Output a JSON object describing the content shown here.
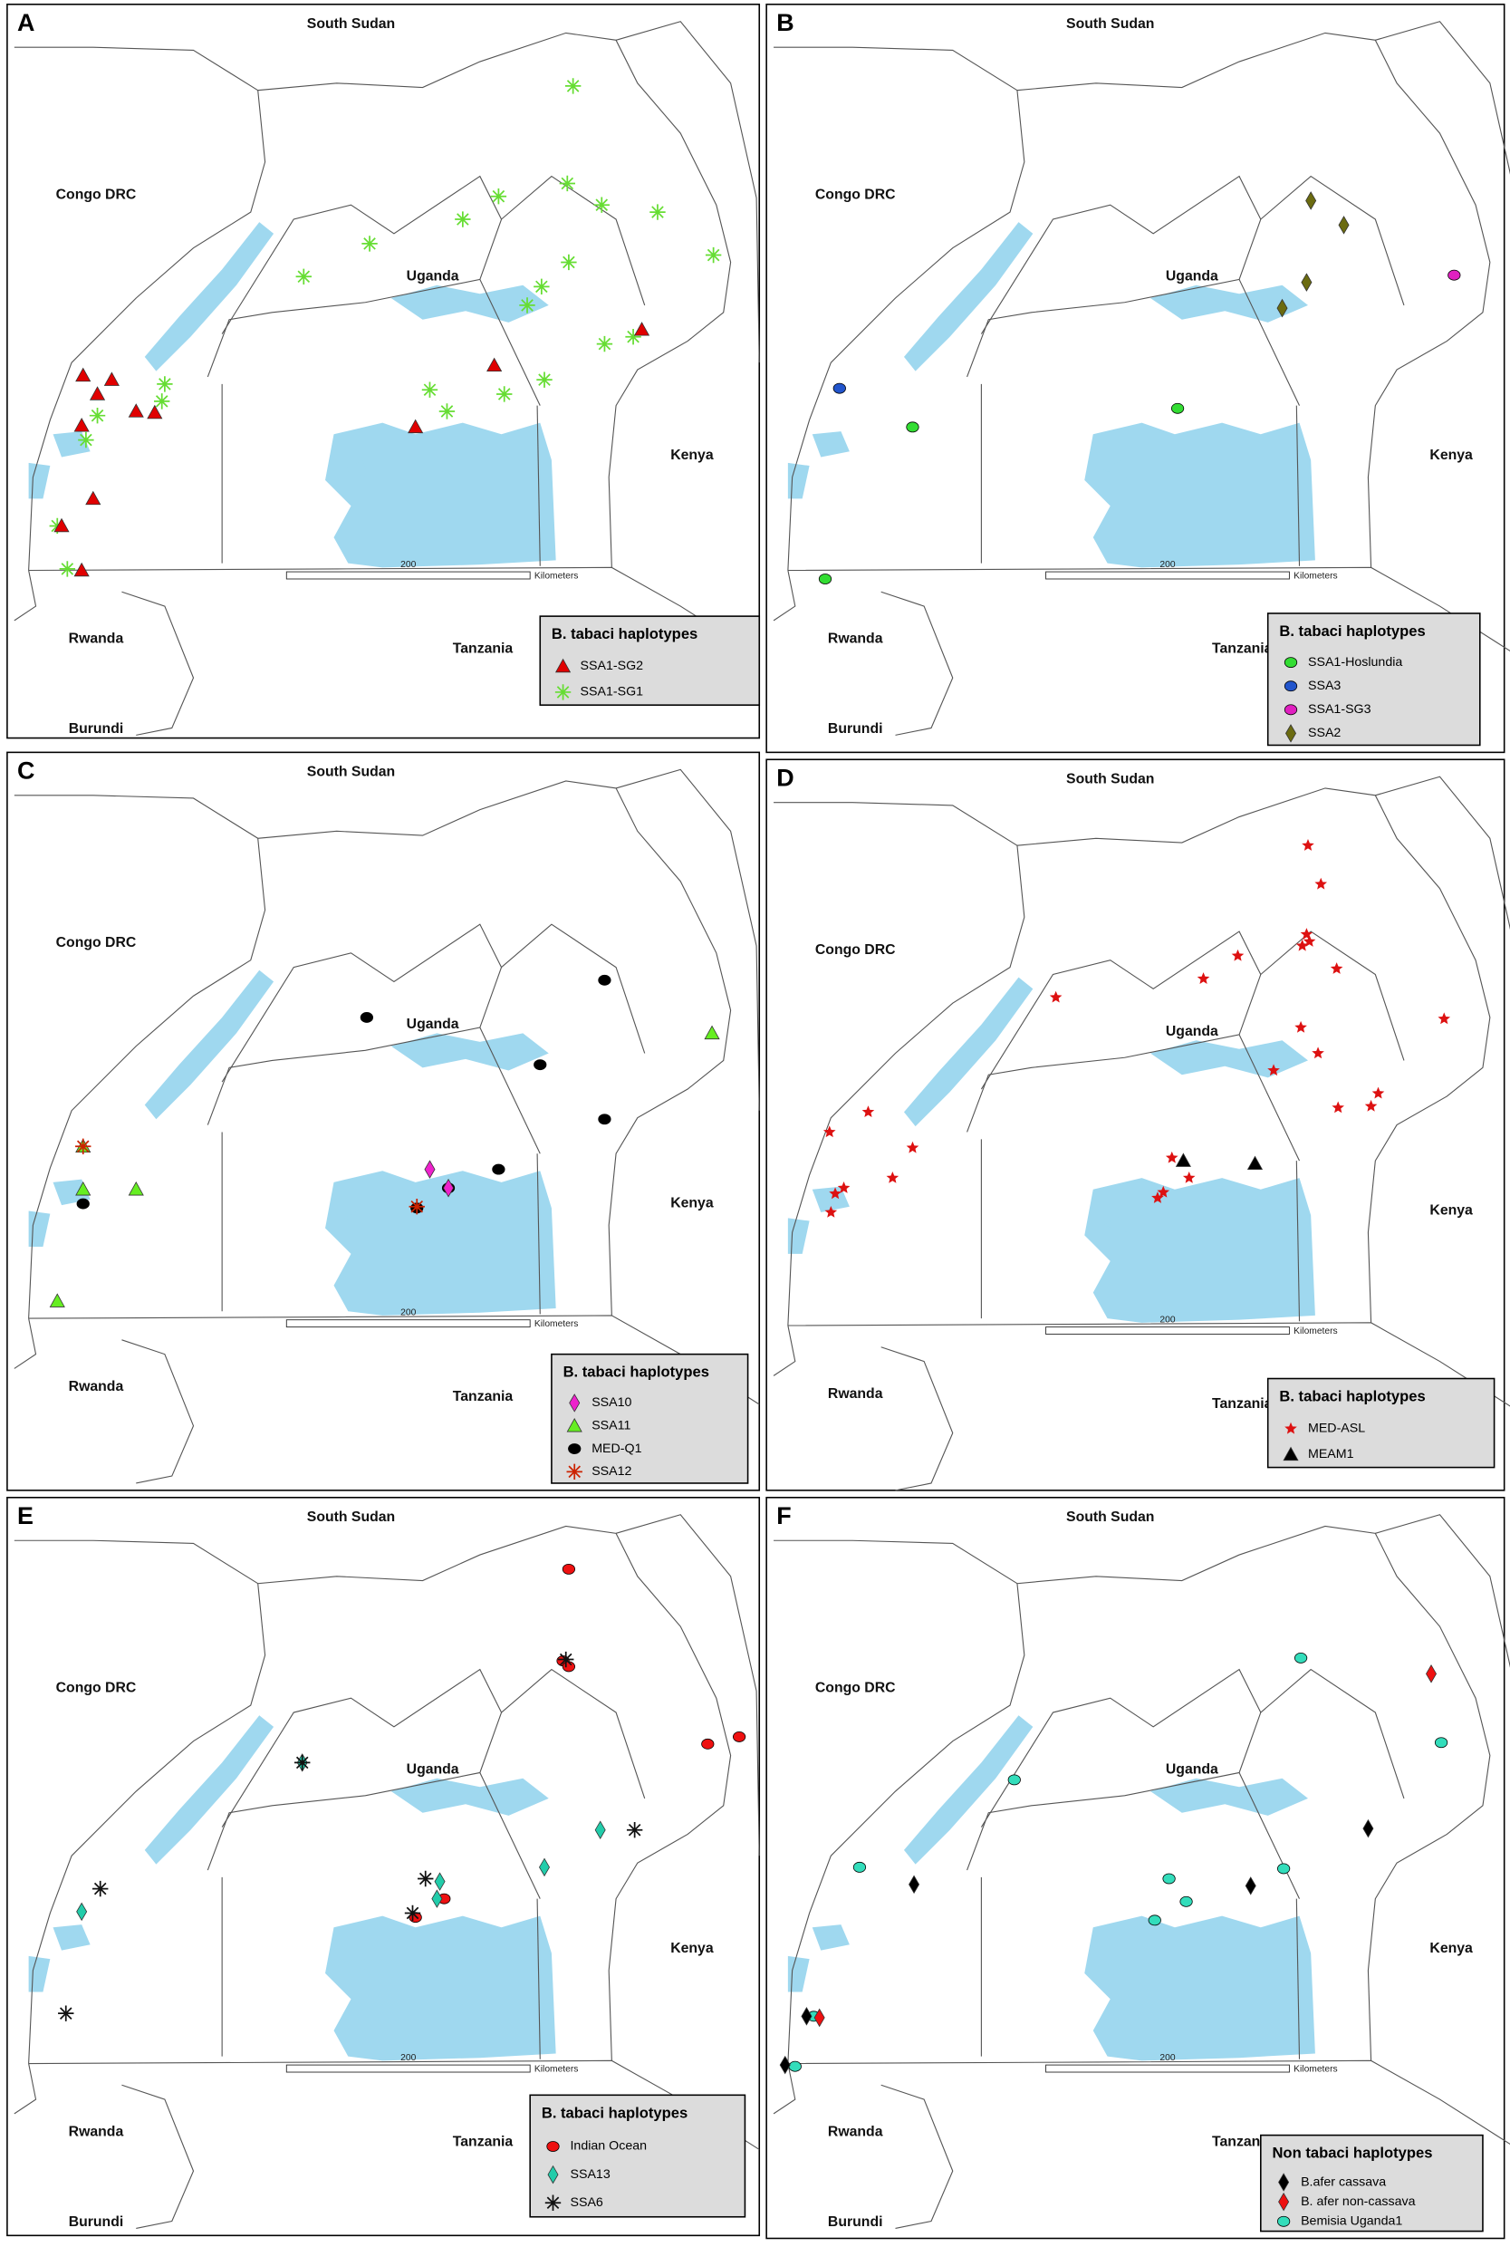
{
  "panels": [
    {
      "label": "A",
      "place_names": [
        "South Sudan",
        "Congo DRC",
        "Uganda",
        "Kenya",
        "Rwanda",
        "Tanzania",
        "Burundi"
      ],
      "scale_label": "200",
      "scale_unit": "Kilometers",
      "legend": {
        "title": "B. tabaci haplotypes",
        "entries": [
          {
            "name": "SSA1-SG2",
            "color": "#e00000",
            "marker": "triangle"
          },
          {
            "name": "SSA1-SG1",
            "color": "#66dd33",
            "marker": "asterisk"
          }
        ]
      }
    },
    {
      "label": "B",
      "place_names": [
        "South Sudan",
        "Congo DRC",
        "Uganda",
        "Kenya",
        "Rwanda",
        "Tanzania",
        "Burundi"
      ],
      "scale_label": "200",
      "scale_unit": "Kilometers",
      "legend": {
        "title": "B. tabaci haplotypes",
        "entries": [
          {
            "name": "SSA1-Hoslundia",
            "color": "#33dd33",
            "marker": "circle"
          },
          {
            "name": "SSA3",
            "color": "#2255cc",
            "marker": "circle"
          },
          {
            "name": "SSA1-SG3",
            "color": "#e020c0",
            "marker": "circle"
          },
          {
            "name": "SSA2",
            "color": "#6b6b10",
            "marker": "diamond"
          }
        ]
      }
    },
    {
      "label": "C",
      "place_names": [
        "South Sudan",
        "Congo DRC",
        "Uganda",
        "Kenya",
        "Rwanda",
        "Tanzania"
      ],
      "scale_label": "200",
      "scale_unit": "Kilometers",
      "legend": {
        "title": "B. tabaci haplotypes",
        "entries": [
          {
            "name": "SSA10",
            "color": "#ee22cc",
            "marker": "diamond"
          },
          {
            "name": "SSA11",
            "color": "#66ee22",
            "marker": "triangle"
          },
          {
            "name": "MED-Q1",
            "color": "#000000",
            "marker": "circle"
          },
          {
            "name": "SSA12",
            "color": "#cc2200",
            "marker": "asterisk"
          }
        ]
      }
    },
    {
      "label": "D",
      "place_names": [
        "South Sudan",
        "Congo DRC",
        "Uganda",
        "Kenya",
        "Rwanda",
        "Tanzania"
      ],
      "scale_label": "200",
      "scale_unit": "Kilometers",
      "legend": {
        "title": "B. tabaci haplotypes",
        "entries": [
          {
            "name": "MED-ASL",
            "color": "#dd1111",
            "marker": "star"
          },
          {
            "name": "MEAM1",
            "color": "#000000",
            "marker": "triangle"
          }
        ]
      }
    },
    {
      "label": "E",
      "place_names": [
        "South Sudan",
        "Congo DRC",
        "Uganda",
        "Kenya",
        "Rwanda",
        "Tanzania",
        "Burundi"
      ],
      "scale_label": "200",
      "scale_unit": "Kilometers",
      "legend": {
        "title": "B. tabaci haplotypes",
        "entries": [
          {
            "name": "Indian Ocean",
            "color": "#ee1111",
            "marker": "circle"
          },
          {
            "name": "SSA13",
            "color": "#22ccaa",
            "marker": "diamond"
          },
          {
            "name": "SSA6",
            "color": "#111111",
            "marker": "asterisk"
          }
        ]
      }
    },
    {
      "label": "F",
      "place_names": [
        "South Sudan",
        "Congo DRC",
        "Uganda",
        "Kenya",
        "Rwanda",
        "Tanzania",
        "Burundi"
      ],
      "scale_label": "200",
      "scale_unit": "Kilometers",
      "legend": {
        "title": "Non tabaci haplotypes",
        "entries": [
          {
            "name": "B.afer cassava",
            "color": "#000000",
            "marker": "diamond"
          },
          {
            "name": "B. afer non-cassava",
            "color": "#ee1111",
            "marker": "diamond"
          },
          {
            "name": "Bemisia Uganda1",
            "color": "#33ddbb",
            "marker": "circle"
          }
        ]
      }
    }
  ]
}
